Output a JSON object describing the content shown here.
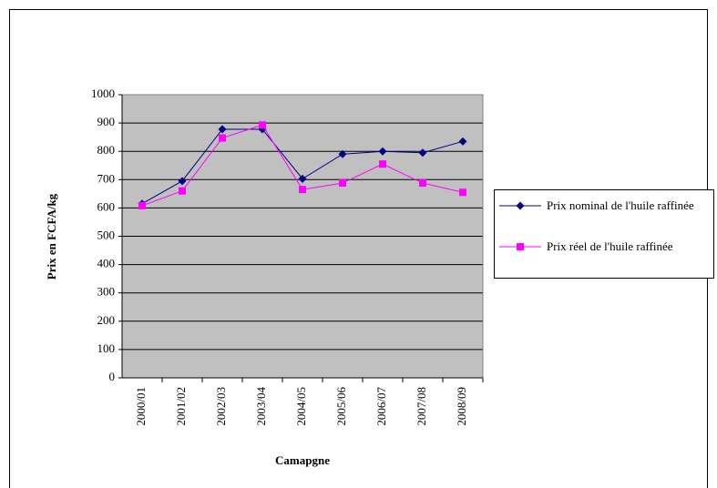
{
  "chart_data": {
    "type": "line",
    "x_label": "Camapgne",
    "y_label": "Prix en FCFA/kg",
    "categories": [
      "2000/01",
      "2001/02",
      "2002/03",
      "2003/04",
      "2004/05",
      "2005/06",
      "2006/07",
      "2007/08",
      "2008/09"
    ],
    "series": [
      {
        "name": "Prix nominal de l'huile raffinée",
        "color": "#000080",
        "marker": "diamond",
        "values": [
          615,
          695,
          878,
          878,
          703,
          790,
          800,
          795,
          835
        ]
      },
      {
        "name": "Prix réel de l'huile raffinée",
        "color": "#ff00ff",
        "marker": "square",
        "values": [
          608,
          660,
          847,
          893,
          665,
          688,
          755,
          688,
          655
        ]
      }
    ],
    "ylim": [
      0,
      1000
    ],
    "yticks": [
      0,
      100,
      200,
      300,
      400,
      500,
      600,
      700,
      800,
      900,
      1000
    ],
    "grid": true,
    "plot_background": "#c0c0c0",
    "legend": "right"
  }
}
